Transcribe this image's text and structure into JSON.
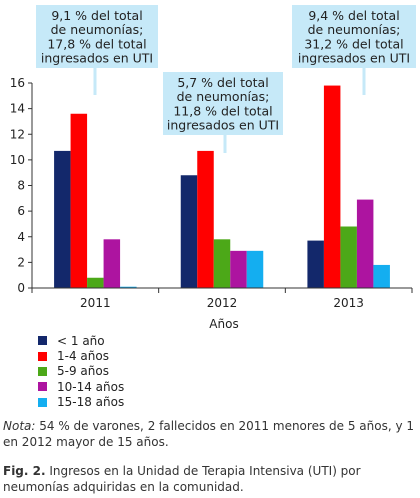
{
  "chart_data": {
    "type": "bar",
    "categories": [
      "2011",
      "2012",
      "2013"
    ],
    "series": [
      {
        "name": "< 1 año",
        "color": "#13286b",
        "values": [
          10.7,
          8.8,
          3.7
        ]
      },
      {
        "name": "1-4 años",
        "color": "#ff0000",
        "values": [
          13.6,
          10.7,
          15.8
        ]
      },
      {
        "name": "5-9 años",
        "color": "#4ca818",
        "values": [
          0.8,
          3.8,
          4.8
        ]
      },
      {
        "name": "10-14 años",
        "color": "#ad14a0",
        "values": [
          3.8,
          2.9,
          6.9
        ]
      },
      {
        "name": "15-18 años",
        "color": "#14aef0",
        "values": [
          0.1,
          2.9,
          1.8
        ]
      }
    ],
    "xlabel": "Años",
    "ylabel": "",
    "ylim": [
      0,
      16
    ],
    "yticks": [
      0,
      2,
      4,
      6,
      8,
      10,
      12,
      14,
      16
    ],
    "grid": false,
    "legend_position": "bottom-left",
    "annotations": [
      {
        "category": "2011",
        "lines": [
          "9,1 % del total",
          "de neumonías;",
          "17,8 % del total",
          "ingresados en UTI"
        ]
      },
      {
        "category": "2012",
        "lines": [
          "5,7 % del total",
          "de neumonías;",
          "11,8 % del total",
          "ingresados en UTI"
        ]
      },
      {
        "category": "2013",
        "lines": [
          "9,4 % del total",
          "de neumonías;",
          "31,2 % del total",
          "ingresados en UTI"
        ]
      }
    ],
    "callout_color": "#c6e9f8"
  },
  "note": {
    "label": "Nota:",
    "text": " 54 % de varones, 2 fallecidos en 2011 menores de 5 años, y 1 en 2012 mayor de 15 años."
  },
  "caption": {
    "label": "Fig. 2.",
    "text": " Ingresos en la Unidad de Terapia Intensiva (UTI) por neumonías adquiridas en la comunidad."
  }
}
